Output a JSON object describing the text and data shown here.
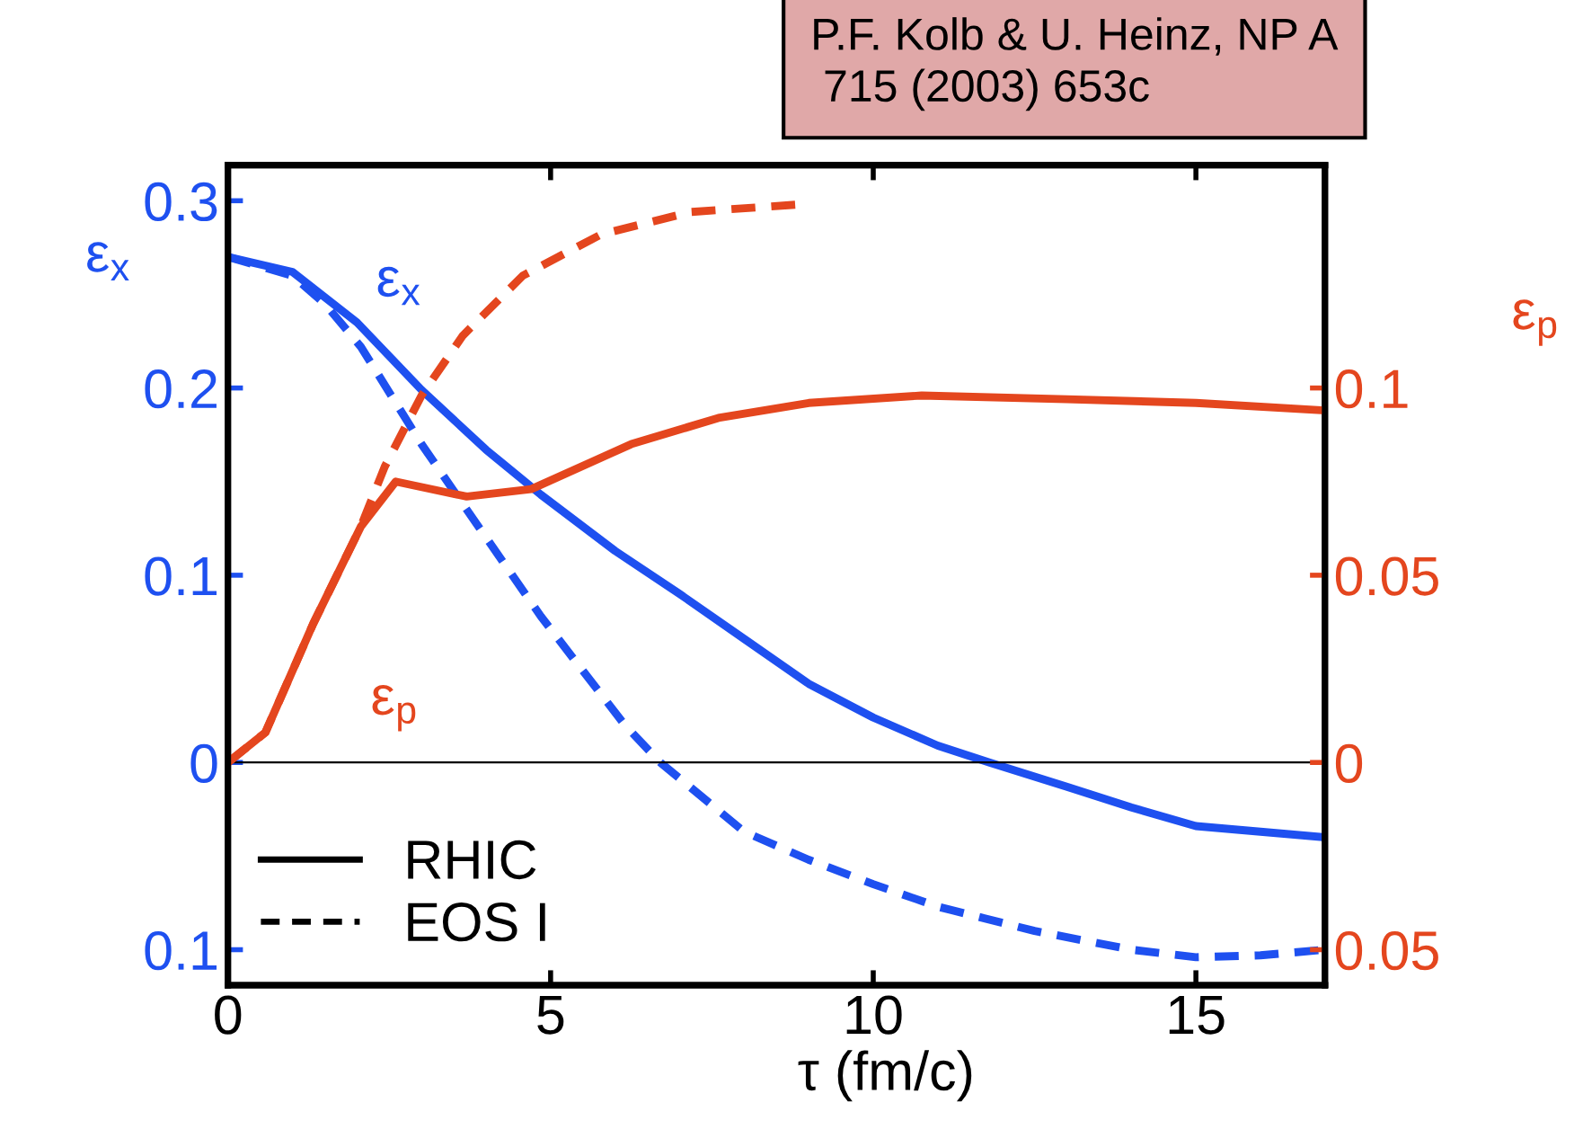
{
  "chart_data": {
    "type": "line",
    "xlabel": "τ (fm/c)",
    "ylabel": "ε$_{x}$",
    "y2label": "ε$_{p}$",
    "xlim": [
      0,
      17
    ],
    "xticks": [
      0,
      5,
      10,
      15
    ],
    "ylim": [
      -0.119,
      0.319
    ],
    "yticks": [
      {
        "value": -0.1,
        "label": "0.1"
      },
      0,
      0.1,
      0.2,
      0.3
    ],
    "y2lim": [
      -0.0595,
      0.1595
    ],
    "y2ticks": [
      {
        "value": -0.05,
        "label": "0.05"
      },
      0,
      0.05,
      0.1
    ],
    "grid": false,
    "marker": "none",
    "series": [
      {
        "color": "#1e50f0",
        "line_style": "solid",
        "x": [
          0,
          1,
          2,
          3,
          4,
          4.85,
          6,
          7,
          8,
          9,
          10,
          11,
          11.8,
          13,
          14,
          15,
          16,
          17
        ],
        "values": [
          0.27,
          0.262,
          0.235,
          0.199,
          0.167,
          0.143,
          0.113,
          0.09,
          0.066,
          0.042,
          0.024,
          0.009,
          0,
          -0.013,
          -0.024,
          -0.034,
          -0.037,
          -0.04
        ]
      },
      {
        "color": "#1e50f0",
        "line_style": "dashed",
        "x": [
          0,
          1,
          1.5,
          2.06,
          3,
          3.64,
          4.85,
          6.15,
          6.7,
          8,
          9,
          10,
          11,
          12.5,
          14,
          15,
          16,
          17
        ],
        "values": [
          0.27,
          0.26,
          0.245,
          0.222,
          0.17,
          0.138,
          0.078,
          0.02,
          0,
          -0.037,
          -0.052,
          -0.065,
          -0.077,
          -0.09,
          -0.1,
          -0.104,
          -0.103,
          -0.1
        ]
      },
      {
        "color": "#e4461e",
        "line_style": "solid",
        "axis": "y2",
        "x": [
          0,
          0.58,
          1.32,
          2.06,
          2.6,
          3.7,
          4.7,
          6.25,
          7.6,
          9,
          10.75,
          13,
          15,
          17
        ],
        "values": [
          0,
          0.008,
          0.037,
          0.063,
          0.075,
          0.071,
          0.073,
          0.085,
          0.092,
          0.096,
          0.098,
          0.097,
          0.096,
          0.094
        ]
      },
      {
        "color": "#e4461e",
        "line_style": "dashed",
        "axis": "y2",
        "x": [
          0,
          0.58,
          1.32,
          2.06,
          2.43,
          3,
          3.64,
          4.57,
          5.78,
          7.17,
          8.85
        ],
        "values": [
          0,
          0.008,
          0.037,
          0.063,
          0.079,
          0.098,
          0.114,
          0.13,
          0.141,
          0.147,
          0.149
        ]
      }
    ],
    "ref_lines": [
      {
        "axis": "y",
        "value": 0,
        "color": "#000000",
        "line_style": "solid"
      }
    ],
    "annotations": [
      "ε$_{x}$",
      "ε$_{p}$",
      "RHIC",
      "EOS I",
      "P.F. Kolb & U. Heinz, NP A\n 715 (2003) 653c"
    ]
  }
}
